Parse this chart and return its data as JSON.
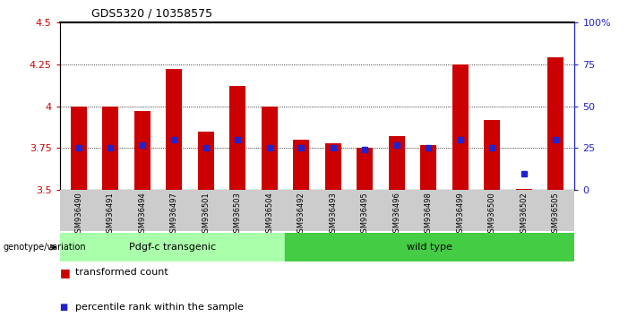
{
  "title": "GDS5320 / 10358575",
  "samples": [
    "GSM936490",
    "GSM936491",
    "GSM936494",
    "GSM936497",
    "GSM936501",
    "GSM936503",
    "GSM936504",
    "GSM936492",
    "GSM936493",
    "GSM936495",
    "GSM936496",
    "GSM936498",
    "GSM936499",
    "GSM936500",
    "GSM936502",
    "GSM936505"
  ],
  "bar_values": [
    4.0,
    4.0,
    3.97,
    4.22,
    3.85,
    4.12,
    4.0,
    3.8,
    3.78,
    3.75,
    3.82,
    3.77,
    4.25,
    3.92,
    3.51,
    4.29
  ],
  "percentile_values": [
    25,
    25,
    27,
    30,
    25,
    30,
    25,
    25,
    25,
    24,
    27,
    25,
    30,
    25,
    10,
    30
  ],
  "bar_color": "#cc0000",
  "dot_color": "#2222cc",
  "ylim_left": [
    3.5,
    4.5
  ],
  "ylim_right": [
    0,
    100
  ],
  "yticks_left": [
    3.5,
    3.75,
    4.0,
    4.25,
    4.5
  ],
  "ytick_labels_left": [
    "3.5",
    "3.75",
    "4",
    "4.25",
    "4.5"
  ],
  "yticks_right": [
    0,
    25,
    50,
    75,
    100
  ],
  "ytick_labels_right": [
    "0",
    "25",
    "50",
    "75",
    "100%"
  ],
  "gridlines": [
    3.75,
    4.0,
    4.25
  ],
  "groups": [
    {
      "label": "Pdgf-c transgenic",
      "start": 0,
      "end": 7,
      "color": "#aaffaa"
    },
    {
      "label": "wild type",
      "start": 7,
      "end": 16,
      "color": "#44cc44"
    }
  ],
  "genotype_label": "genotype/variation",
  "legend_bar_label": "transformed count",
  "legend_dot_label": "percentile rank within the sample",
  "bar_color_legend": "#cc0000",
  "dot_color_legend": "#2222cc",
  "bar_width": 0.5,
  "base_value": 3.5,
  "xtick_bg_color": "#cccccc"
}
